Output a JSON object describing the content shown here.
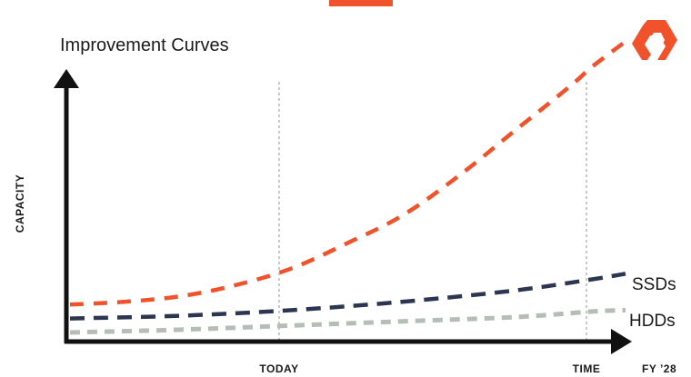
{
  "colors": {
    "accent": "#f0532c",
    "ssd": "#2c3650",
    "hdd": "#b4bdb6",
    "axis": "#111111",
    "gridline": "#b5b5b5"
  },
  "logo": {
    "icon": "pure-storage-logo-icon",
    "color": "#f0532c"
  },
  "chart_data": {
    "type": "line",
    "title": "Improvement Curves",
    "ylabel": "CAPACITY",
    "xlabel": "",
    "x_markers": [
      "TODAY",
      "TIME",
      "FY ’28"
    ],
    "xlim": [
      0,
      1
    ],
    "ylim": [
      0,
      1
    ],
    "grid": false,
    "series": [
      {
        "name": "",
        "style": "dashed",
        "color": "#f0532c",
        "x": [
          0,
          0.1,
          0.2,
          0.3,
          0.4,
          0.5,
          0.6,
          0.7,
          0.8,
          0.9,
          0.94,
          1.0
        ],
        "y": [
          0.1,
          0.11,
          0.13,
          0.17,
          0.23,
          0.32,
          0.42,
          0.56,
          0.72,
          0.88,
          0.95,
          1.04
        ]
      },
      {
        "name": "SSDs",
        "style": "dashed",
        "color": "#2c3650",
        "x": [
          0,
          0.2,
          0.4,
          0.6,
          0.8,
          0.94,
          1.0
        ],
        "y": [
          0.05,
          0.06,
          0.08,
          0.11,
          0.15,
          0.19,
          0.21
        ]
      },
      {
        "name": "HDDs",
        "style": "dashed",
        "color": "#b4bdb6",
        "x": [
          0,
          0.2,
          0.4,
          0.6,
          0.8,
          0.94,
          1.0
        ],
        "y": [
          0.0,
          0.01,
          0.025,
          0.04,
          0.055,
          0.075,
          0.08
        ]
      }
    ]
  }
}
